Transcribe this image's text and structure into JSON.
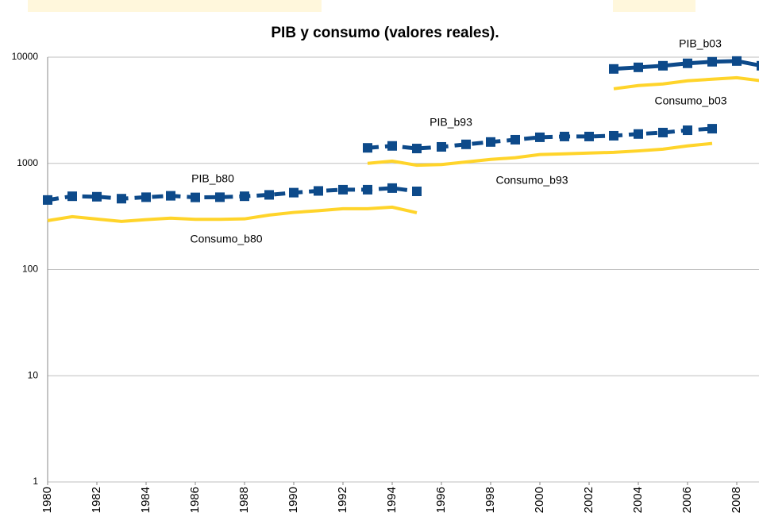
{
  "chart_data": {
    "type": "line",
    "title": "PIB y consumo (valores reales).",
    "x": [
      1980,
      1981,
      1982,
      1983,
      1984,
      1985,
      1986,
      1987,
      1988,
      1989,
      1990,
      1991,
      1992,
      1993,
      1994,
      1995,
      1996,
      1997,
      1998,
      1999,
      2000,
      2001,
      2002,
      2003,
      2004,
      2005,
      2006,
      2007,
      2008,
      2009
    ],
    "xlim": [
      1980,
      2009
    ],
    "xticks": [
      1980,
      1982,
      1984,
      1986,
      1988,
      1990,
      1992,
      1994,
      1996,
      1998,
      2000,
      2002,
      2004,
      2006,
      2008
    ],
    "log_y": true,
    "ylim": [
      1,
      10000
    ],
    "yticks": [
      1,
      10,
      100,
      1000,
      10000
    ],
    "grid": true,
    "series": [
      {
        "name": "PIB_b80",
        "color": "#0d4a8a",
        "line_style": "dashed",
        "markers": true,
        "values": [
          452,
          490,
          485,
          465,
          480,
          495,
          478,
          480,
          490,
          505,
          530,
          550,
          565,
          565,
          585,
          545,
          null,
          null,
          null,
          null,
          null,
          null,
          null,
          null,
          null,
          null,
          null,
          null,
          null,
          null
        ]
      },
      {
        "name": "Consumo_b80",
        "color": "#ffd42a",
        "line_style": "solid",
        "markers": false,
        "values": [
          289,
          315,
          299,
          284,
          295,
          305,
          297,
          297,
          300,
          326,
          345,
          358,
          374,
          374,
          387,
          343,
          null,
          null,
          null,
          null,
          null,
          null,
          null,
          null,
          null,
          null,
          null,
          null,
          null,
          null
        ]
      },
      {
        "name": "PIB_b93",
        "color": "#0d4a8a",
        "line_style": "dashed",
        "markers": true,
        "values": [
          null,
          null,
          null,
          null,
          null,
          null,
          null,
          null,
          null,
          null,
          null,
          null,
          null,
          1400,
          1460,
          1380,
          1430,
          1510,
          1590,
          1670,
          1760,
          1790,
          1790,
          1820,
          1890,
          1950,
          2050,
          2120,
          null,
          null
        ]
      },
      {
        "name": "Consumo_b93",
        "color": "#ffd42a",
        "line_style": "solid",
        "markers": false,
        "values": [
          null,
          null,
          null,
          null,
          null,
          null,
          null,
          null,
          null,
          null,
          null,
          null,
          null,
          1000,
          1050,
          960,
          975,
          1030,
          1090,
          1130,
          1210,
          1230,
          1250,
          1270,
          1310,
          1360,
          1460,
          1540,
          null,
          null
        ]
      },
      {
        "name": "PIB_b03",
        "color": "#0d4a8a",
        "line_style": "solid",
        "markers": true,
        "values": [
          null,
          null,
          null,
          null,
          null,
          null,
          null,
          null,
          null,
          null,
          null,
          null,
          null,
          null,
          null,
          null,
          null,
          null,
          null,
          null,
          null,
          null,
          null,
          7750,
          8020,
          8300,
          8750,
          9050,
          9200,
          8300
        ]
      },
      {
        "name": "Consumo_b03",
        "color": "#ffd42a",
        "line_style": "solid",
        "markers": false,
        "values": [
          null,
          null,
          null,
          null,
          null,
          null,
          null,
          null,
          null,
          null,
          null,
          null,
          null,
          null,
          null,
          null,
          null,
          null,
          null,
          null,
          null,
          null,
          null,
          5040,
          5400,
          5590,
          5990,
          6200,
          6410,
          5990
        ]
      }
    ]
  }
}
